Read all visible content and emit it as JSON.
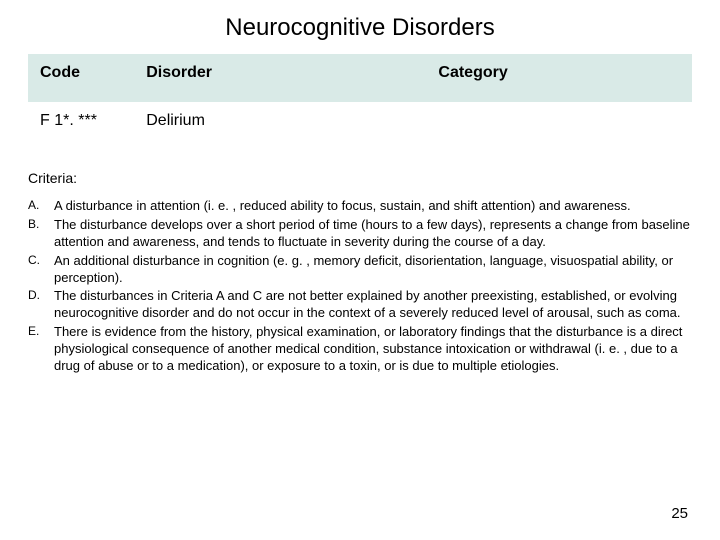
{
  "title": "Neurocognitive Disorders",
  "table": {
    "headers": {
      "code": "Code",
      "disorder": "Disorder",
      "category": "Category"
    },
    "row": {
      "code": "F 1*. ***",
      "disorder": "Delirium",
      "category": ""
    },
    "header_bg": "#d9eae7",
    "row_bg": "#ffffff"
  },
  "criteria_label": "Criteria:",
  "criteria": [
    {
      "marker": "A.",
      "text": "A disturbance in attention (i. e. , reduced ability to focus, sustain, and shift attention) and awareness."
    },
    {
      "marker": "B.",
      "text": "The disturbance develops over a short period of time (hours to a few days), represents a change from baseline attention and awareness, and tends to fluctuate in severity during the course of a day."
    },
    {
      "marker": "C.",
      "text": "An additional disturbance in cognition (e. g. , memory deficit, disorientation, language, visuospatial ability, or perception)."
    },
    {
      "marker": "D.",
      "text": "The disturbances in Criteria A and C are not better explained by another preexisting, established, or evolving neurocognitive disorder and do not occur in the context of a severely reduced level of arousal, such as coma."
    },
    {
      "marker": "E.",
      "text": "There is evidence from the history, physical examination, or laboratory findings that the disturbance is a direct physiological consequence of another medical condition, substance intoxication or withdrawal (i. e. , due to a drug of abuse or to a medication), or exposure to a toxin, or is due to multiple etiologies."
    }
  ],
  "page_number": "25",
  "colors": {
    "background": "#ffffff",
    "text": "#000000"
  },
  "fonts": {
    "title_size": 24,
    "header_size": 16,
    "body_size": 13,
    "criteria_label_size": 14
  }
}
